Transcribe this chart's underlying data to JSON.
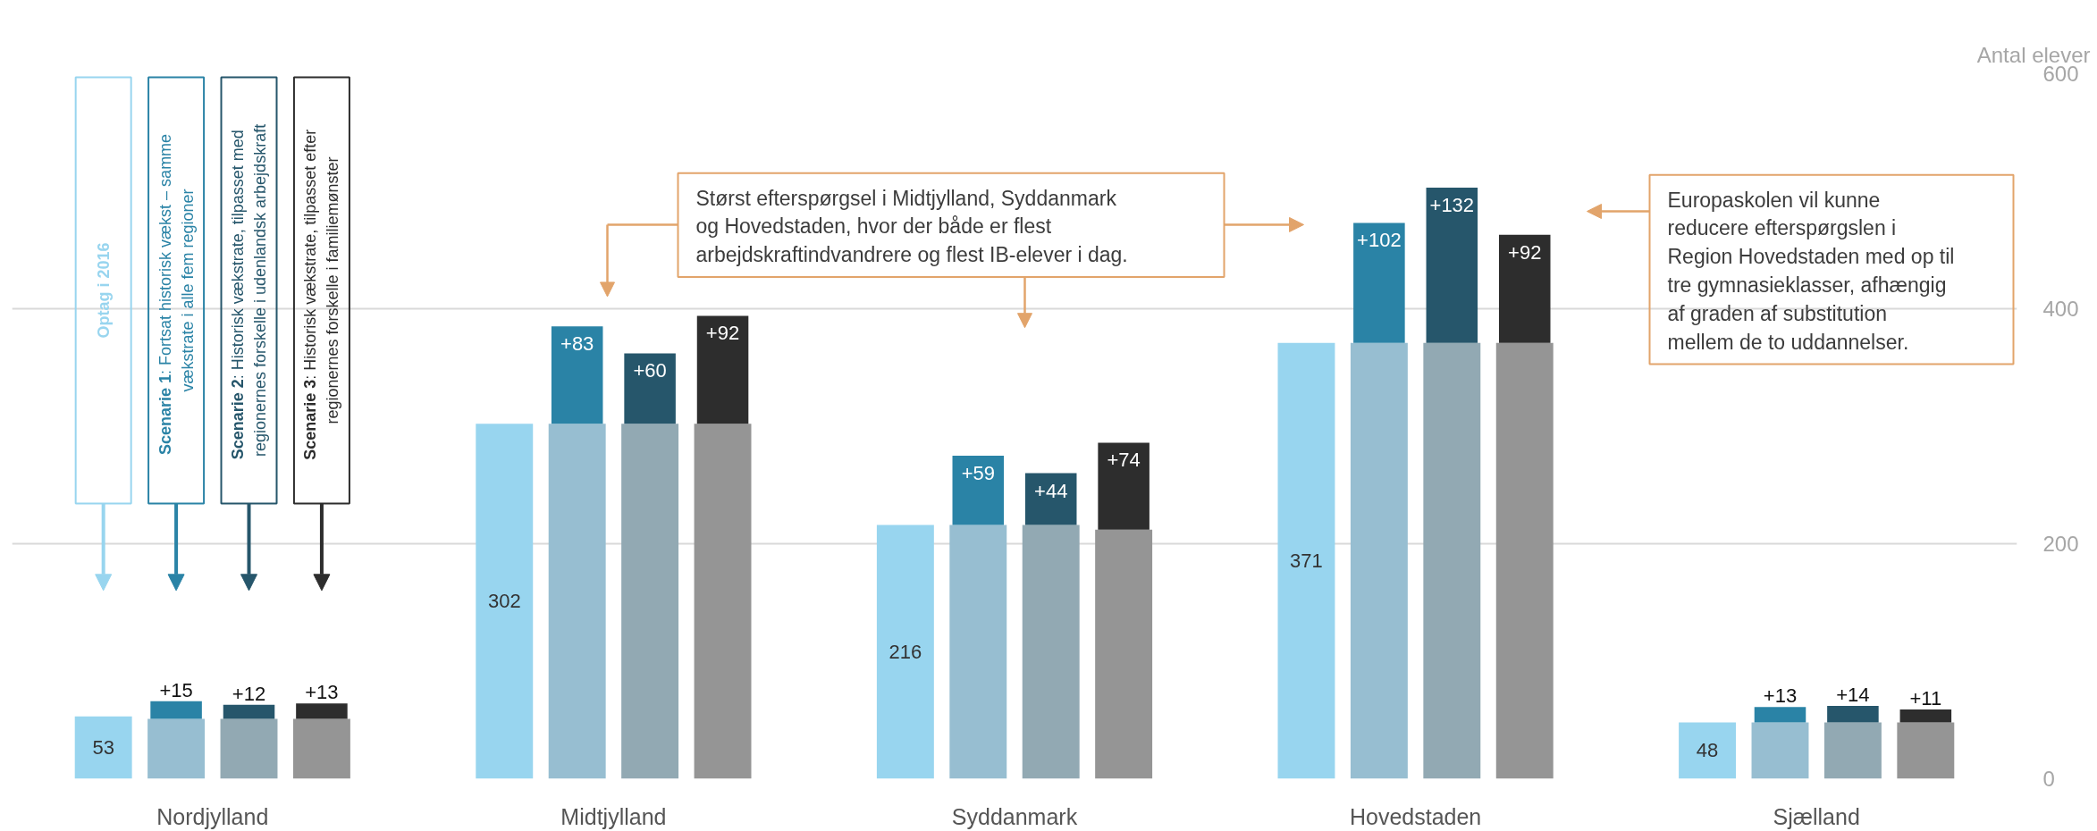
{
  "chart_data": {
    "type": "bar",
    "ylabel": "Antal elever",
    "categories": [
      "Nordjylland",
      "Midtjylland",
      "Syddanmark",
      "Hovedstaden",
      "Sjælland"
    ],
    "series": [
      {
        "name": "Optag i 2016",
        "color": "#98d5ef",
        "values": [
          53,
          302,
          216,
          371,
          48
        ],
        "value_labels": [
          "53",
          "302",
          "216",
          "371",
          "48"
        ]
      },
      {
        "color": "#97bed1",
        "values": [
          51,
          302,
          216,
          371,
          48
        ]
      },
      {
        "name": "Scenarie 1: Fortsat historisk vækst – samme\nvækstrate i alle fem regioner",
        "color": "#2a83a6",
        "values": [
          15,
          83,
          59,
          102,
          13
        ],
        "base": [
          51,
          302,
          216,
          371,
          48
        ],
        "value_labels": [
          "+15",
          "+83",
          "+59",
          "+102",
          "+13"
        ]
      },
      {
        "color": "#92a9b3",
        "values": [
          51,
          302,
          216,
          371,
          48
        ]
      },
      {
        "name": "Scenarie 2: Historisk vækstrate, tilpasset med\nregionernes forskelle i udenlandsk arbejdskraft",
        "color": "#26566b",
        "values": [
          12,
          60,
          44,
          132,
          14
        ],
        "base": [
          51,
          302,
          216,
          371,
          48
        ],
        "value_labels": [
          "+12",
          "+60",
          "+44",
          "+132",
          "+14"
        ]
      },
      {
        "color": "#959595",
        "values": [
          51,
          302,
          212,
          371,
          48
        ]
      },
      {
        "name": "Scenarie 3: Historisk vækstrate, tilpasset efter\nregionernes forskelle i familiemønster",
        "color": "#2d2d2d",
        "values": [
          13,
          92,
          74,
          92,
          11
        ],
        "base": [
          51,
          302,
          212,
          371,
          48
        ],
        "value_labels": [
          "+13",
          "+92",
          "+74",
          "+92",
          "+11"
        ]
      }
    ],
    "ylim": [
      0,
      600
    ],
    "yticks": [
      0,
      200,
      400,
      600
    ],
    "grid": "y",
    "legend": "top left",
    "annotations": [
      "Størst efterspørgsel i Midtjylland, Syddanmark\nog Hovedstaden, hvor der både er flest\narbejdskraftindvandrere og flest IB-elever i dag.",
      "Europaskolen vil kunne\nreducere efterspørgslen i\nRegion Hovedstaden med op til\ntre gymnasieklasser, afhængig\naf graden af substitution\nmellem de to uddannelser."
    ]
  }
}
